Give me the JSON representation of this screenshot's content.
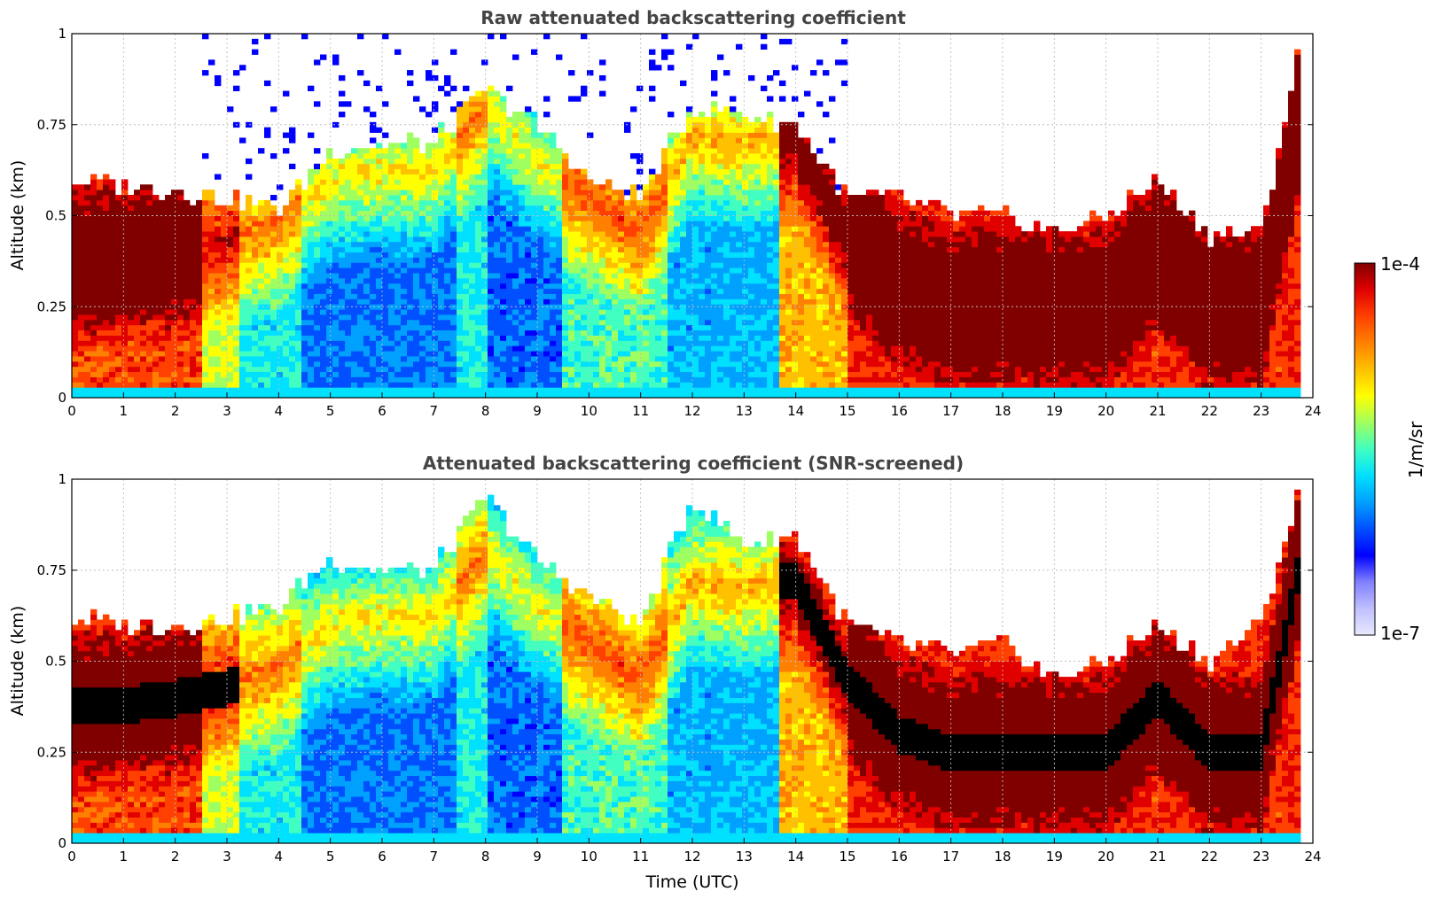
{
  "chart_data": [
    {
      "type": "heatmap",
      "title": "Raw attenuated backscattering coefficient",
      "xlabel": "",
      "ylabel": "Altitude (km)",
      "xlim": [
        0,
        24
      ],
      "ylim": [
        0,
        1
      ],
      "x_ticks": [
        "0",
        "1",
        "2",
        "3",
        "4",
        "5",
        "6",
        "7",
        "8",
        "9",
        "10",
        "11",
        "12",
        "13",
        "14",
        "15",
        "16",
        "17",
        "18",
        "19",
        "20",
        "21",
        "22",
        "23",
        "24"
      ],
      "y_ticks": [
        "0",
        "0.25",
        "0.5",
        "0.75",
        "1"
      ],
      "grid": true,
      "color_scale": "log",
      "value_range": [
        1e-07,
        0.0001
      ],
      "screened": false,
      "time_hours": [
        0,
        1,
        2,
        3,
        4,
        5,
        6,
        7,
        8,
        9,
        10,
        11,
        12,
        13,
        14,
        15,
        16,
        17,
        18,
        19,
        20,
        21,
        22,
        23,
        23.8
      ],
      "layer_top_km": [
        0.6,
        0.58,
        0.57,
        0.55,
        0.52,
        0.68,
        0.7,
        0.7,
        0.85,
        0.75,
        0.6,
        0.55,
        0.8,
        0.78,
        0.75,
        0.55,
        0.55,
        0.5,
        0.5,
        0.45,
        0.5,
        0.6,
        0.45,
        0.45,
        1.0
      ],
      "peak_altitude_km": [
        0.38,
        0.38,
        0.4,
        0.43,
        0.48,
        0.6,
        0.62,
        0.62,
        0.8,
        0.65,
        0.55,
        0.45,
        0.72,
        0.7,
        0.72,
        0.45,
        0.3,
        0.25,
        0.25,
        0.25,
        0.25,
        0.4,
        0.25,
        0.25,
        0.8
      ]
    },
    {
      "type": "heatmap",
      "title": "Attenuated backscattering coefficient (SNR-screened)",
      "xlabel": "Time (UTC)",
      "ylabel": "Altitude (km)",
      "xlim": [
        0,
        24
      ],
      "ylim": [
        0,
        1
      ],
      "x_ticks": [
        "0",
        "1",
        "2",
        "3",
        "4",
        "5",
        "6",
        "7",
        "8",
        "9",
        "10",
        "11",
        "12",
        "13",
        "14",
        "15",
        "16",
        "17",
        "18",
        "19",
        "20",
        "21",
        "22",
        "23",
        "24"
      ],
      "y_ticks": [
        "0",
        "0.25",
        "0.5",
        "0.75",
        "1"
      ],
      "grid": true,
      "color_scale": "log",
      "value_range": [
        1e-07,
        0.0001
      ],
      "screened": true,
      "time_hours": [
        0,
        1,
        2,
        3,
        4,
        5,
        6,
        7,
        8,
        9,
        10,
        11,
        12,
        13,
        14,
        15,
        16,
        17,
        18,
        19,
        20,
        21,
        22,
        23,
        23.8
      ],
      "layer_top_km": [
        0.62,
        0.6,
        0.6,
        0.62,
        0.65,
        0.78,
        0.75,
        0.75,
        0.95,
        0.78,
        0.68,
        0.6,
        0.95,
        0.82,
        0.85,
        0.6,
        0.55,
        0.52,
        0.55,
        0.45,
        0.5,
        0.6,
        0.5,
        0.6,
        1.0
      ],
      "peak_altitude_km": [
        0.38,
        0.38,
        0.4,
        0.43,
        0.48,
        0.6,
        0.62,
        0.62,
        0.8,
        0.65,
        0.55,
        0.45,
        0.72,
        0.7,
        0.72,
        0.45,
        0.3,
        0.25,
        0.25,
        0.25,
        0.25,
        0.4,
        0.25,
        0.25,
        0.8
      ]
    }
  ],
  "colorbar": {
    "max_label": "1e-4",
    "min_label": "1e-7",
    "unit_label": "1/m/sr",
    "colors": [
      "#e8e8ff",
      "#c0c0ff",
      "#8080ff",
      "#0000ff",
      "#0050ff",
      "#00a0ff",
      "#00e0ff",
      "#40ffc0",
      "#a0ff60",
      "#ffff00",
      "#ffc000",
      "#ff8000",
      "#ff4000",
      "#e00000",
      "#800000"
    ]
  }
}
